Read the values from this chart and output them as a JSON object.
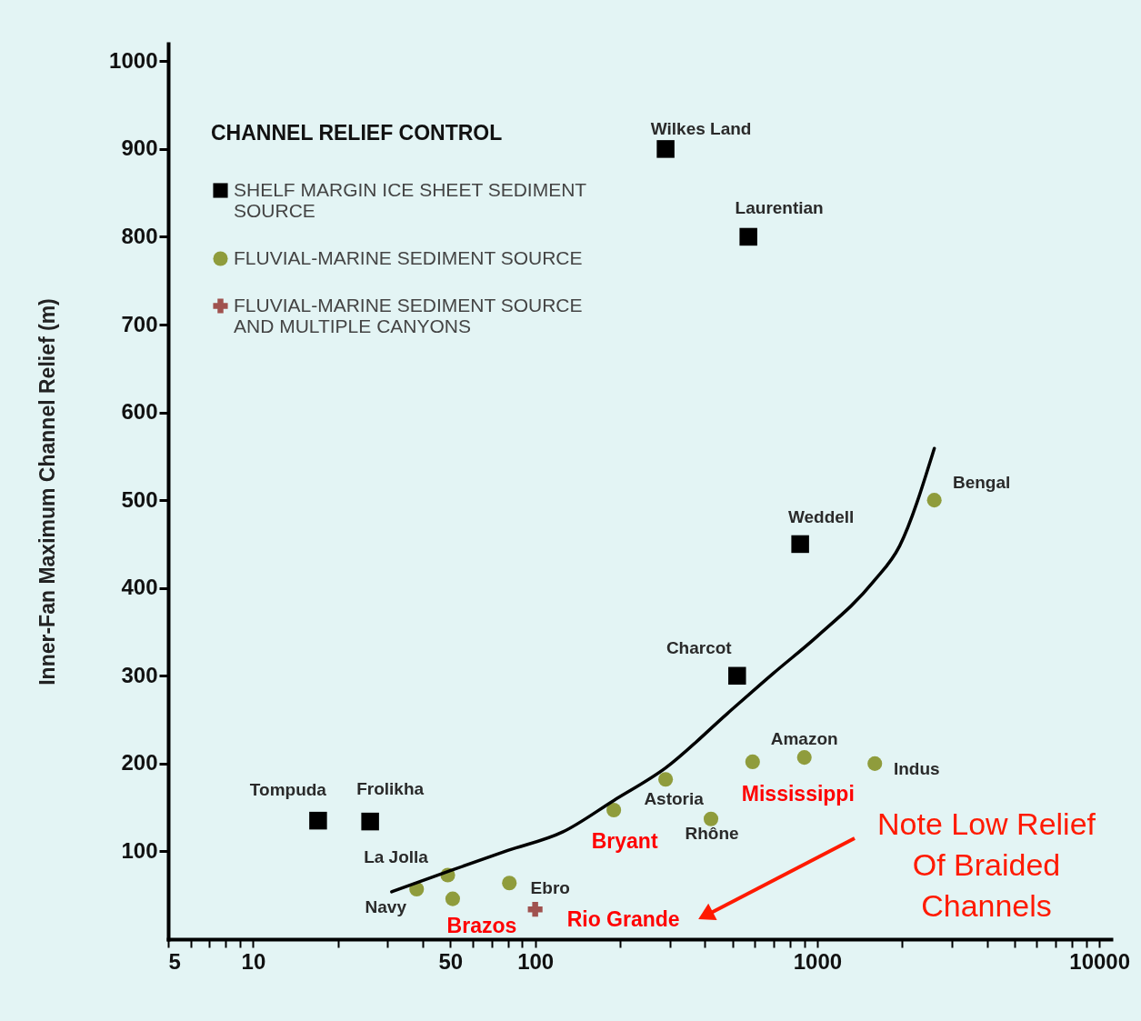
{
  "chart_data": {
    "type": "scatter",
    "ylabel": "Inner-Fan Maximum Channel Relief (m)",
    "legend_title": "CHANNEL RELIEF CONTROL",
    "log": "x",
    "grid": false,
    "legend": "top left",
    "xlim": [
      5,
      11000
    ],
    "xticks": [
      5,
      {
        "value": 6,
        "label": null
      },
      {
        "value": 7,
        "label": null
      },
      {
        "value": 8,
        "label": null
      },
      {
        "value": 9,
        "label": null
      },
      10,
      {
        "value": 20,
        "label": null
      },
      {
        "value": 30,
        "label": null
      },
      {
        "value": 40,
        "label": null
      },
      50,
      {
        "value": 60,
        "label": null
      },
      {
        "value": 70,
        "label": null
      },
      {
        "value": 80,
        "label": null
      },
      {
        "value": 90,
        "label": null
      },
      100,
      {
        "value": 200,
        "label": null
      },
      {
        "value": 300,
        "label": null
      },
      {
        "value": 400,
        "label": null
      },
      {
        "value": 500,
        "label": null
      },
      {
        "value": 600,
        "label": null
      },
      {
        "value": 700,
        "label": null
      },
      {
        "value": 800,
        "label": null
      },
      {
        "value": 900,
        "label": null
      },
      1000,
      {
        "value": 2000,
        "label": null
      },
      {
        "value": 3000,
        "label": null
      },
      {
        "value": 4000,
        "label": null
      },
      {
        "value": 5000,
        "label": null
      },
      {
        "value": 6000,
        "label": null
      },
      {
        "value": 7000,
        "label": null
      },
      {
        "value": 8000,
        "label": null
      },
      {
        "value": 9000,
        "label": null
      },
      10000
    ],
    "ylim": [
      0,
      1020
    ],
    "yticks": [
      100,
      200,
      300,
      400,
      500,
      600,
      700,
      800,
      900,
      1000
    ],
    "series": [
      {
        "name": "SHELF MARGIN ICE SHEET SEDIMENT SOURCE",
        "color": "#000000",
        "marker": "square",
        "x": [
          290,
          570,
          870,
          520,
          17,
          26
        ],
        "values": [
          900,
          800,
          450,
          300,
          135,
          134
        ]
      },
      {
        "name": "FLUVIAL-MARINE SEDIMENT SOURCE",
        "color": "#8f9c3c",
        "marker": "circle",
        "x": [
          2600,
          900,
          590,
          1600,
          290,
          420,
          190,
          49,
          38,
          51,
          81
        ],
        "values": [
          500,
          207,
          202,
          200,
          182,
          137,
          147,
          73,
          57,
          46,
          64
        ]
      },
      {
        "name": "FLUVIAL-MARINE SEDIMENT SOURCE AND MULTIPLE CANYONS",
        "color": "#a0524f",
        "marker": "cross",
        "x": [
          100
        ],
        "values": [
          34
        ]
      },
      {
        "type": "line",
        "color": "#000000",
        "marker": "none",
        "line_style": "solid",
        "x": [
          31,
          50,
          80,
          125,
          190,
          290,
          480,
          700,
          1000,
          1580,
          1960,
          2600
        ],
        "values": [
          54,
          78,
          101,
          122,
          158,
          195,
          257,
          303,
          345,
          407,
          448,
          559
        ]
      }
    ],
    "annotations": [
      {
        "text": "Wilkes  Land",
        "x": 290,
        "y": 900
      },
      {
        "text": "Laurentian",
        "x": 570,
        "y": 800
      },
      {
        "text": "Weddell",
        "x": 870,
        "y": 450
      },
      {
        "text": "Charcot",
        "x": 520,
        "y": 300
      },
      {
        "text": "Tompuda",
        "x": 17,
        "y": 135
      },
      {
        "text": "Frolikha",
        "x": 26,
        "y": 134
      },
      {
        "text": "Bengal",
        "x": 2600,
        "y": 500
      },
      {
        "text": "Amazon",
        "x": 900,
        "y": 207
      },
      {
        "text": "Mississippi",
        "x": 590,
        "y": 202
      },
      {
        "text": "Indus",
        "x": 1600,
        "y": 200
      },
      {
        "text": "Astoria",
        "x": 290,
        "y": 182
      },
      {
        "text": "Rhône",
        "x": 420,
        "y": 137
      },
      {
        "text": "Bryant",
        "x": 190,
        "y": 147
      },
      {
        "text": "La  Jolla",
        "x": 49,
        "y": 73
      },
      {
        "text": "Navy",
        "x": 38,
        "y": 57
      },
      {
        "text": "Brazos",
        "x": 51,
        "y": 46
      },
      {
        "text": "Ebro",
        "x": 81,
        "y": 64
      },
      {
        "text": "Rio Grande",
        "x": 100,
        "y": 34
      },
      "Note Low Relief Of Braided Channels"
    ]
  }
}
